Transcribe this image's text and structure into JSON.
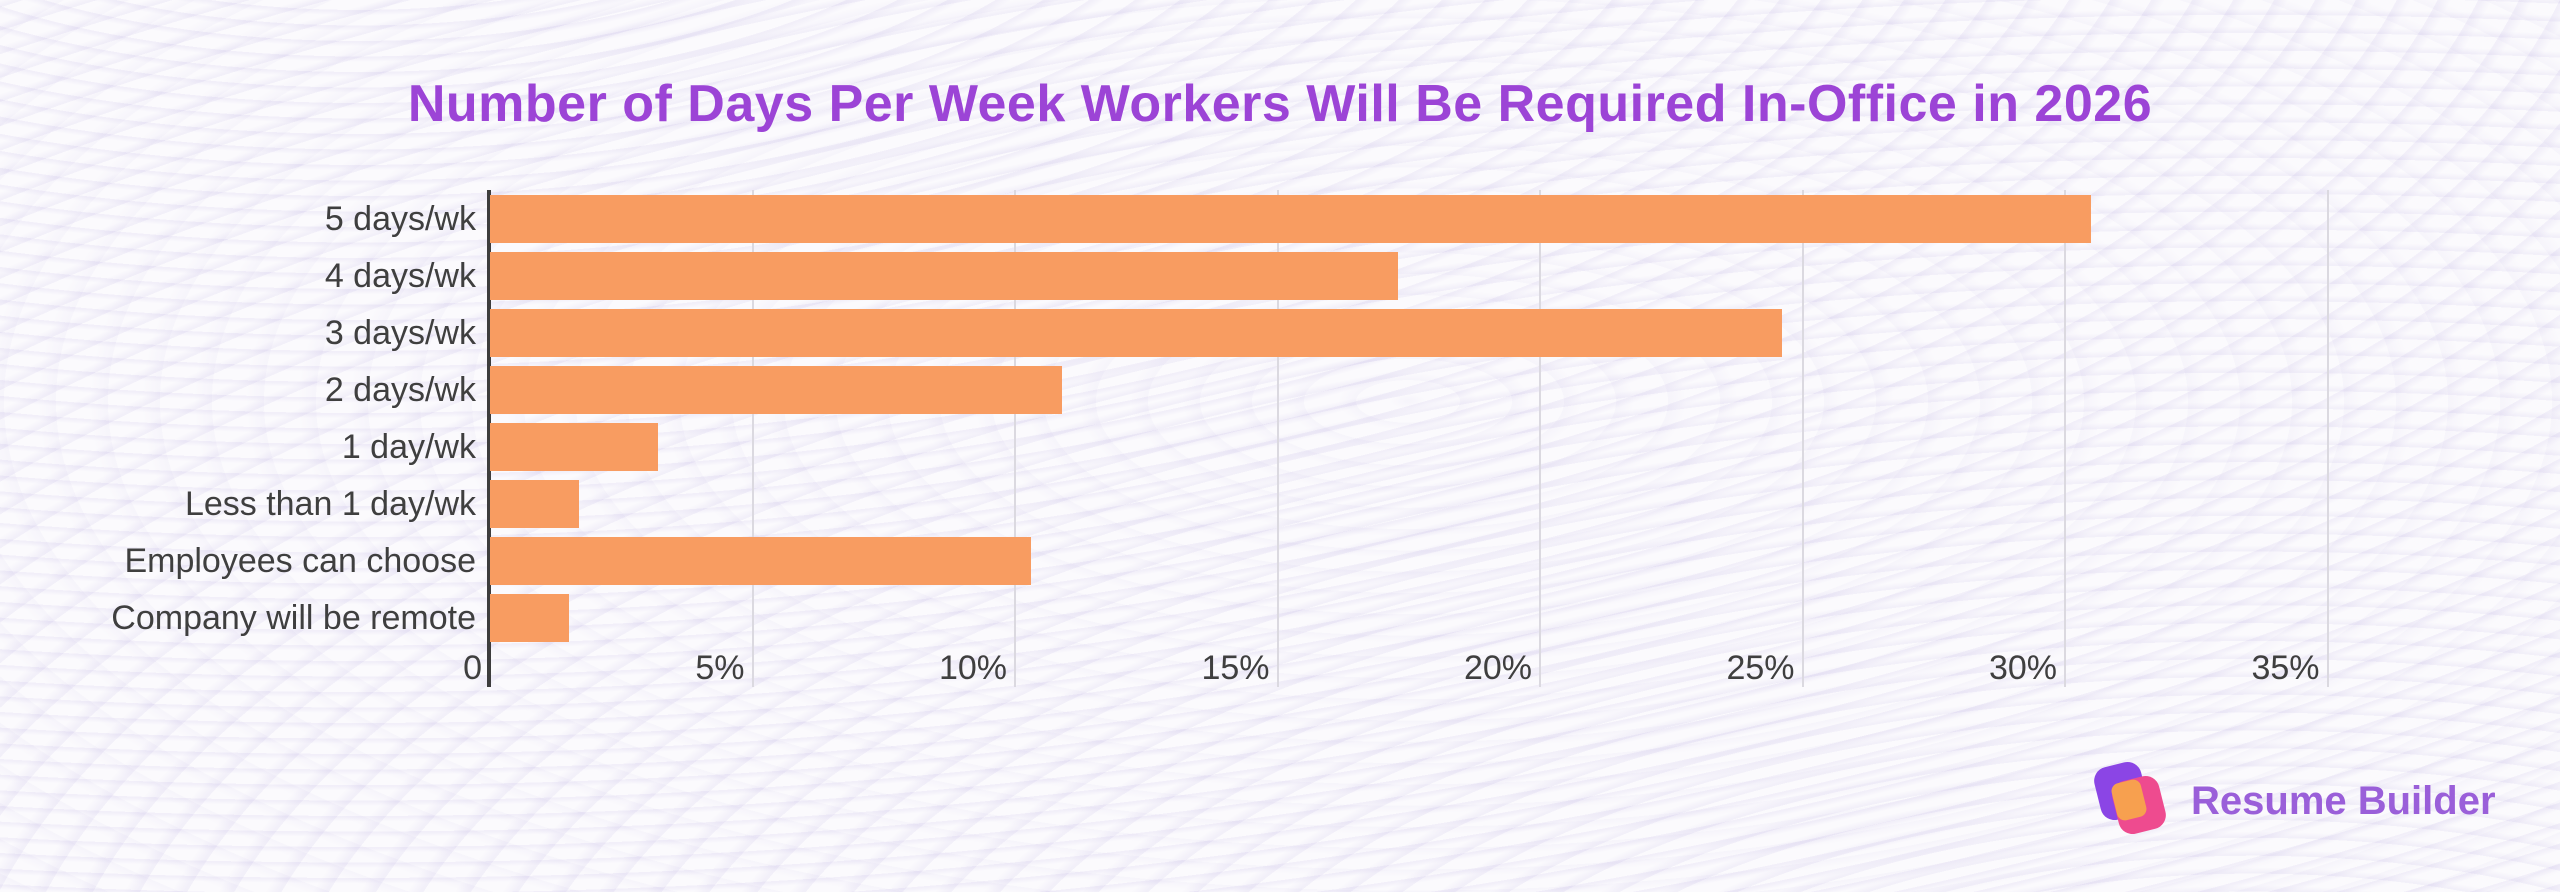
{
  "title": {
    "text": "Number of Days Per Week Workers Will Be Required In-Office in 2026",
    "color": "#9C44D6"
  },
  "chart_data": {
    "type": "bar",
    "orientation": "horizontal",
    "title": "Number of Days Per Week Workers Will Be Required In-Office in 2026",
    "categories": [
      "5 days/wk",
      "4 days/wk",
      "3 days/wk",
      "2 days/wk",
      "1 day/wk",
      "Less than 1 day/wk",
      "Employees can choose",
      "Company will be remote"
    ],
    "values": [
      30.5,
      17.3,
      24.6,
      10.9,
      3.2,
      1.7,
      10.3,
      1.5
    ],
    "unit": "%",
    "xlabel": "",
    "ylabel": "",
    "xlim": [
      0,
      35
    ],
    "xticks": [
      {
        "label": "0",
        "value": 0
      },
      {
        "label": "5%",
        "value": 5
      },
      {
        "label": "10%",
        "value": 10
      },
      {
        "label": "15%",
        "value": 15
      },
      {
        "label": "20%",
        "value": 20
      },
      {
        "label": "25%",
        "value": 25
      },
      {
        "label": "30%",
        "value": 30
      },
      {
        "label": "35%",
        "value": 35
      }
    ],
    "grid": true,
    "legend": false,
    "data_labels": false,
    "bar_color": "#F89C61",
    "axis_color": "#3D3D3D",
    "gridline_color": "#DBD9E0",
    "label_color": "#3F3F3F"
  },
  "branding": {
    "logo_text": "Resume Builder",
    "logo_text_color": "#9A5FD9",
    "mark_purple": "#8B45E5",
    "mark_pink": "#EE4B8F",
    "mark_orange": "#F7A04F"
  }
}
